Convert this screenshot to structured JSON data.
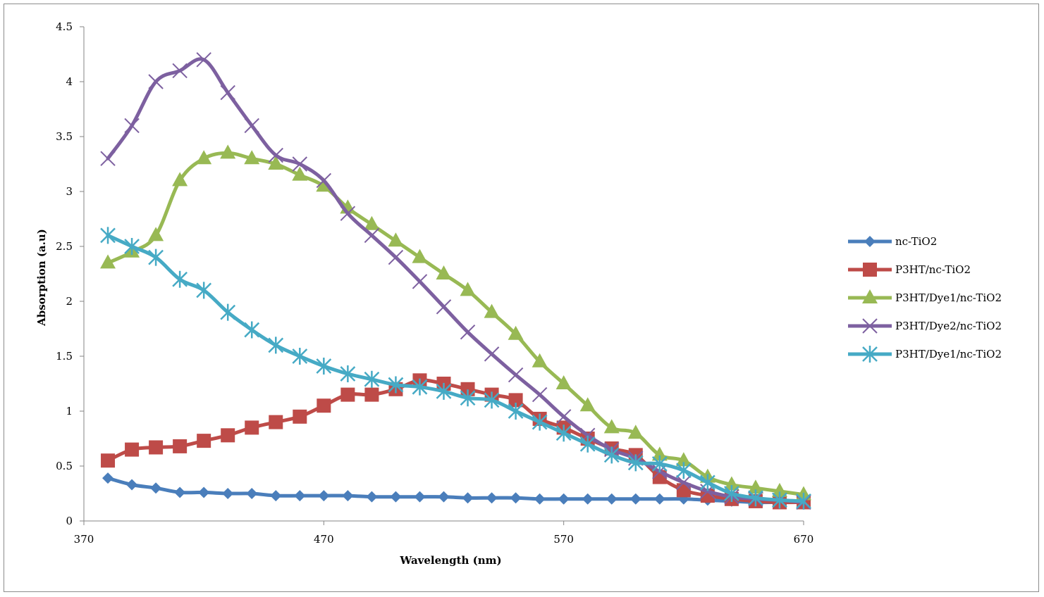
{
  "chart_data": {
    "type": "line",
    "title": "",
    "xlabel": "Wavelength (nm)",
    "ylabel": "Absorption (a.u)",
    "xlim": [
      370,
      670
    ],
    "ylim": [
      0,
      4.5
    ],
    "xticks": [
      "370",
      "470",
      "570",
      "670"
    ],
    "yticks": [
      "0",
      "0.5",
      "1",
      "1.5",
      "2",
      "2.5",
      "3",
      "3.5",
      "4",
      "4.5"
    ],
    "grid": false,
    "legend_position": "right",
    "x": [
      380,
      390,
      400,
      410,
      420,
      430,
      440,
      450,
      460,
      470,
      480,
      490,
      500,
      510,
      520,
      530,
      540,
      550,
      560,
      570,
      580,
      590,
      600,
      610,
      620,
      630,
      640,
      650,
      660,
      670
    ],
    "series": [
      {
        "name": "nc-TiO2",
        "color": "#4a7ebb",
        "marker": "diamond",
        "values": [
          0.39,
          0.33,
          0.3,
          0.26,
          0.26,
          0.25,
          0.25,
          0.23,
          0.23,
          0.23,
          0.23,
          0.22,
          0.22,
          0.22,
          0.22,
          0.21,
          0.21,
          0.21,
          0.2,
          0.2,
          0.2,
          0.2,
          0.2,
          0.2,
          0.2,
          0.19,
          0.18,
          0.17,
          0.17,
          0.17
        ]
      },
      {
        "name": "P3HT/nc-TiO2",
        "color": "#be4b48",
        "marker": "square",
        "values": [
          0.55,
          0.65,
          0.67,
          0.68,
          0.73,
          0.78,
          0.85,
          0.9,
          0.95,
          1.05,
          1.15,
          1.15,
          1.2,
          1.28,
          1.25,
          1.2,
          1.15,
          1.1,
          0.93,
          0.85,
          0.75,
          0.66,
          0.6,
          0.4,
          0.28,
          0.23,
          0.2,
          0.18,
          0.17,
          0.17
        ]
      },
      {
        "name": "P3HT/Dye1/nc-TiO2",
        "color": "#98b954",
        "marker": "triangle",
        "values": [
          2.35,
          2.45,
          2.6,
          3.1,
          3.3,
          3.35,
          3.3,
          3.25,
          3.15,
          3.05,
          2.85,
          2.7,
          2.55,
          2.4,
          2.25,
          2.1,
          1.9,
          1.7,
          1.45,
          1.25,
          1.05,
          0.85,
          0.8,
          0.6,
          0.55,
          0.4,
          0.33,
          0.3,
          0.27,
          0.24
        ]
      },
      {
        "name": "P3HT/Dye2/nc-TiO2",
        "color": "#7d60a0",
        "marker": "x",
        "values": [
          3.3,
          3.6,
          4.0,
          4.1,
          4.2,
          3.9,
          3.6,
          3.33,
          3.25,
          3.1,
          2.8,
          2.6,
          2.4,
          2.18,
          1.95,
          1.72,
          1.52,
          1.33,
          1.15,
          0.95,
          0.78,
          0.65,
          0.57,
          0.45,
          0.35,
          0.27,
          0.22,
          0.2,
          0.19,
          0.17
        ]
      },
      {
        "name": "P3HT/Dye1/nc-TiO2",
        "color": "#46aac5",
        "marker": "star",
        "values": [
          2.6,
          2.5,
          2.4,
          2.2,
          2.1,
          1.9,
          1.74,
          1.6,
          1.5,
          1.41,
          1.34,
          1.29,
          1.24,
          1.22,
          1.18,
          1.12,
          1.1,
          1.0,
          0.9,
          0.8,
          0.7,
          0.6,
          0.53,
          0.52,
          0.46,
          0.35,
          0.25,
          0.21,
          0.19,
          0.18
        ]
      }
    ]
  }
}
